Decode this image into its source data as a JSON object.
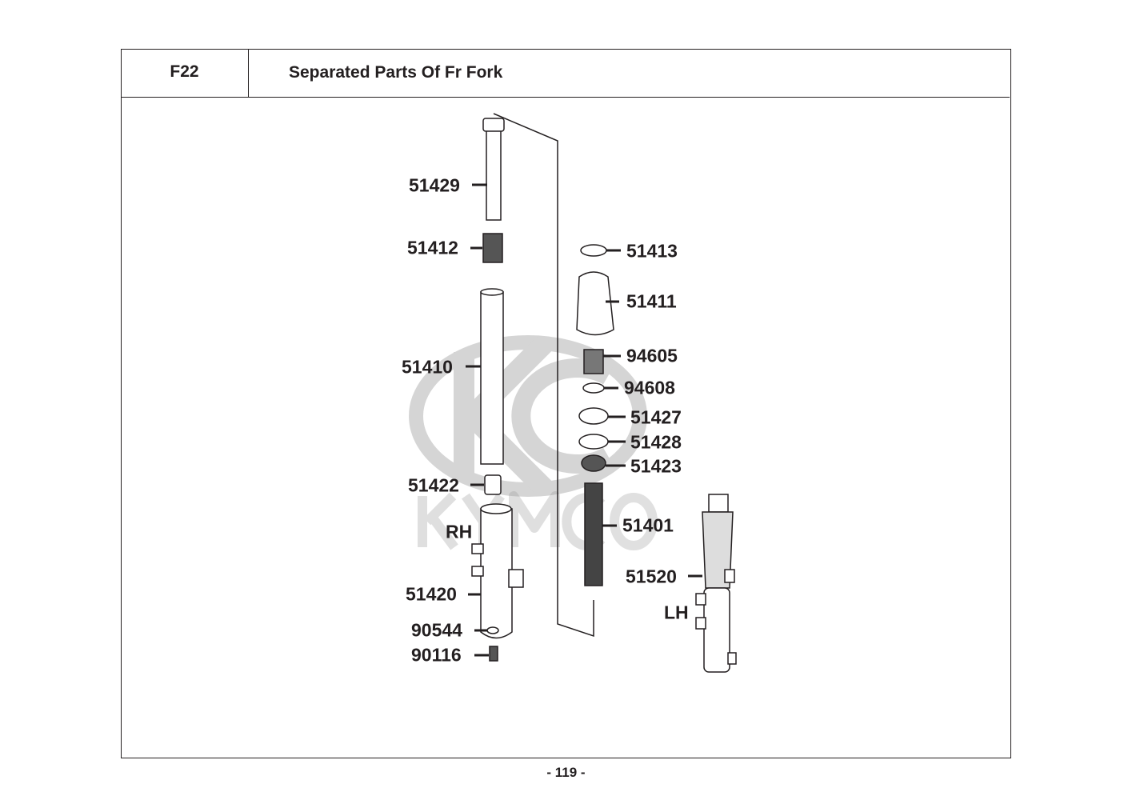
{
  "header": {
    "code": "F22",
    "title": "Separated Parts Of Fr Fork"
  },
  "watermark": "KYMCO",
  "parts": [
    {
      "number": "51429"
    },
    {
      "number": "51412"
    },
    {
      "number": "51410"
    },
    {
      "number": "51422"
    },
    {
      "number": "51420"
    },
    {
      "number": "90544"
    },
    {
      "number": "90116"
    },
    {
      "number": "51413"
    },
    {
      "number": "51411"
    },
    {
      "number": "94605"
    },
    {
      "number": "94608"
    },
    {
      "number": "51427"
    },
    {
      "number": "51428"
    },
    {
      "number": "51423"
    },
    {
      "number": "51401"
    },
    {
      "number": "51520"
    }
  ],
  "side_labels": {
    "right": "RH",
    "left": "LH"
  },
  "page_number": "- 119 -"
}
